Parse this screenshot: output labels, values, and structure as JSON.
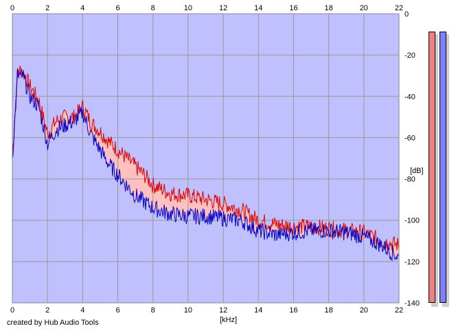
{
  "credit": "created by Hub Audio Tools",
  "colors": {
    "background": "#c0c0ff",
    "area_left": "#ffc0c0",
    "area_right": "#c0c0ff",
    "line_left": "#e00000",
    "line_right": "#0000c8",
    "grid": "#999999",
    "meter_left": "#f08080",
    "meter_right": "#8080ff"
  },
  "chart_data": {
    "type": "area",
    "xlabel": "[kHz]",
    "ylabel": "[dB]",
    "xlim": [
      0,
      22
    ],
    "ylim": [
      -140,
      0
    ],
    "xticks": [
      "0",
      "2",
      "4",
      "6",
      "8",
      "10",
      "12",
      "14",
      "16",
      "18",
      "20",
      "22"
    ],
    "yticks": [
      "0",
      "-20",
      "-40",
      "-60",
      "-80",
      "-100",
      "-120",
      "-140"
    ],
    "grid": true,
    "series": [
      {
        "channel": "left",
        "x": [
          0,
          0.3,
          0.6,
          1,
          1.5,
          2,
          2.5,
          3,
          3.5,
          4,
          4.5,
          5,
          5.5,
          6,
          6.5,
          7,
          7.5,
          8,
          9,
          10,
          11,
          12,
          13,
          14,
          15,
          16,
          17,
          18,
          19,
          20,
          21,
          22
        ],
        "values": [
          -70,
          -27,
          -28,
          -35,
          -42,
          -58,
          -52,
          -50,
          -50,
          -45,
          -53,
          -57,
          -62,
          -66,
          -70,
          -74,
          -78,
          -83,
          -87,
          -88,
          -90,
          -92,
          -95,
          -100,
          -102,
          -103,
          -103,
          -104,
          -105,
          -106,
          -110,
          -112
        ]
      },
      {
        "channel": "right",
        "x": [
          0,
          0.3,
          0.6,
          1,
          1.5,
          2,
          2.5,
          3,
          3.5,
          4,
          4.5,
          5,
          5.5,
          6,
          6.5,
          7,
          7.5,
          8,
          9,
          10,
          11,
          12,
          13,
          14,
          15,
          16,
          17,
          18,
          19,
          20,
          21,
          22
        ],
        "values": [
          -70,
          -30,
          -30,
          -40,
          -45,
          -63,
          -56,
          -54,
          -52,
          -48,
          -59,
          -66,
          -73,
          -78,
          -83,
          -88,
          -91,
          -94,
          -97,
          -98,
          -98,
          -99,
          -100,
          -105,
          -107,
          -106,
          -105,
          -105,
          -106,
          -108,
          -112,
          -118
        ]
      }
    ]
  }
}
